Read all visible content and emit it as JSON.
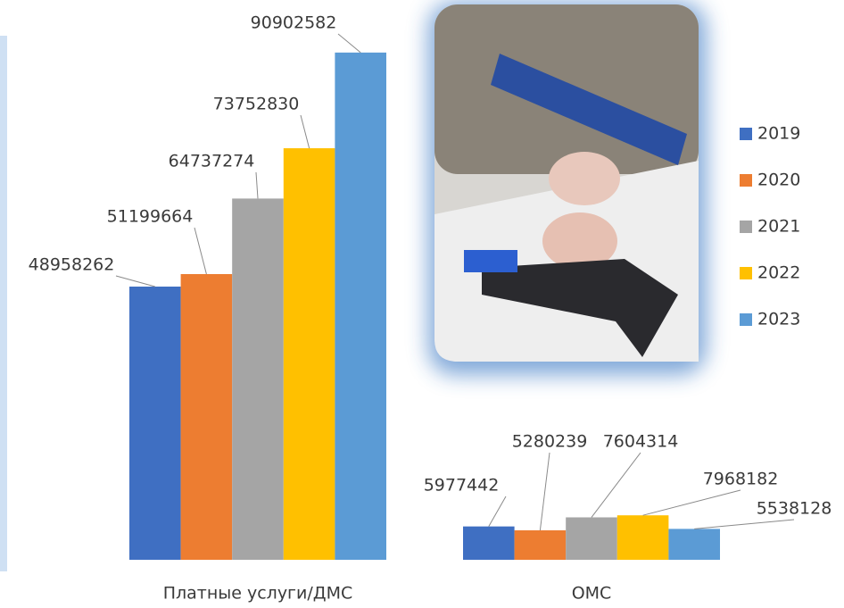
{
  "chart_data": {
    "type": "bar",
    "categories": [
      "Платные услуги/ДМС",
      "ОМС"
    ],
    "series": [
      {
        "name": "2019",
        "color": "#3f6fc2",
        "values": [
          48958262,
          5977442
        ]
      },
      {
        "name": "2020",
        "color": "#ed7d31",
        "values": [
          51199664,
          5280239
        ]
      },
      {
        "name": "2021",
        "color": "#a5a5a5",
        "values": [
          64737274,
          7604314
        ]
      },
      {
        "name": "2022",
        "color": "#ffc000",
        "values": [
          73752830,
          7968182
        ]
      },
      {
        "name": "2023",
        "color": "#5b9bd5",
        "values": [
          90902582,
          5538128
        ]
      }
    ],
    "ylim": [
      0,
      100000000
    ],
    "legend": "right"
  }
}
